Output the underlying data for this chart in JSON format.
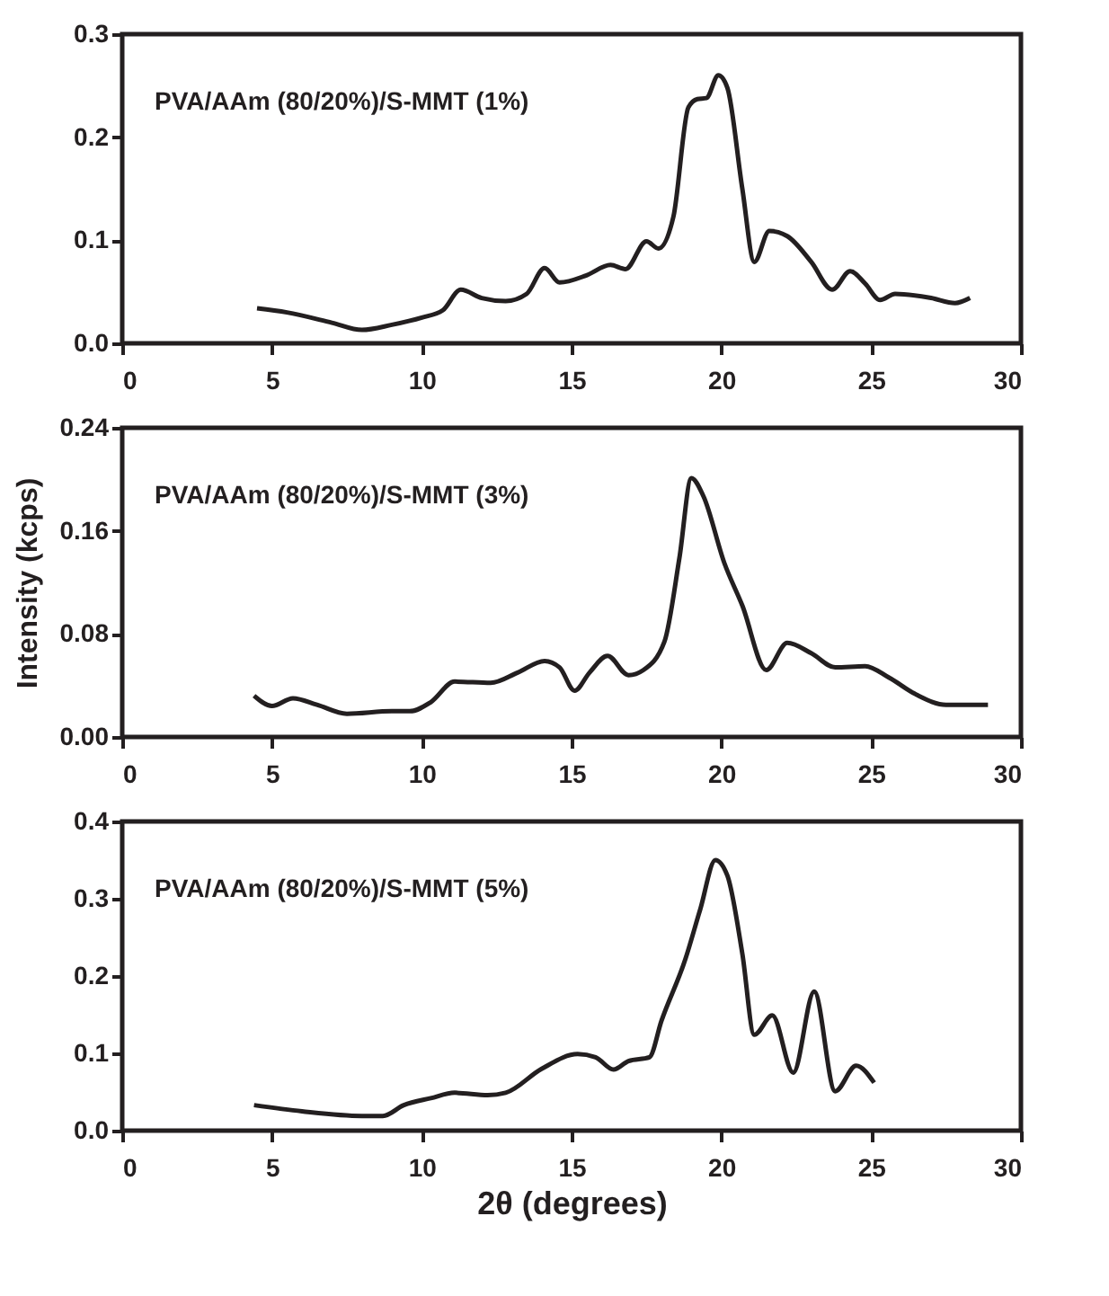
{
  "chart_data": [
    {
      "type": "line",
      "annotations": [
        "PVA/AAm (80/20%)/S-MMT (1%)"
      ],
      "xlim": [
        0,
        30
      ],
      "xticks": [
        0,
        5,
        10,
        15,
        20,
        25,
        30
      ],
      "ylim": [
        0,
        0.3
      ],
      "yticks": [
        {
          "value": 0,
          "label": "0.0"
        },
        {
          "value": 0.1,
          "label": "0.1"
        },
        {
          "value": 0.2,
          "label": "0.2"
        },
        {
          "value": 0.3,
          "label": "0.3"
        }
      ],
      "grid": false,
      "marker": "none",
      "line_style": "solid",
      "series": [
        {
          "color": "#231f20",
          "x": [
            4.5,
            5.5,
            7,
            8,
            9,
            10,
            10.7,
            11.3,
            12,
            12.8,
            13.5,
            14.1,
            14.6,
            15.5,
            16.3,
            16.8,
            17.5,
            17.9,
            18.4,
            18.9,
            19.2,
            19.5,
            19.9,
            20.2,
            20.7,
            21.1,
            21.6,
            22.2,
            23,
            23.7,
            24.3,
            24.8,
            25.3,
            25.8,
            27,
            27.8,
            28.3
          ],
          "values": [
            0.034,
            0.03,
            0.02,
            0.013,
            0.018,
            0.025,
            0.032,
            0.052,
            0.044,
            0.041,
            0.048,
            0.073,
            0.059,
            0.066,
            0.076,
            0.072,
            0.099,
            0.092,
            0.123,
            0.229,
            0.237,
            0.238,
            0.26,
            0.248,
            0.15,
            0.079,
            0.109,
            0.104,
            0.079,
            0.052,
            0.07,
            0.058,
            0.042,
            0.048,
            0.044,
            0.039,
            0.044
          ]
        }
      ]
    },
    {
      "type": "line",
      "ylabel": "Intensity (kcps)",
      "annotations": [
        "PVA/AAm (80/20%)/S-MMT (3%)"
      ],
      "xlim": [
        0,
        30
      ],
      "xticks": [
        0,
        5,
        10,
        15,
        20,
        25,
        30
      ],
      "ylim": [
        0,
        0.24
      ],
      "yticks": [
        {
          "value": 0,
          "label": "0.00"
        },
        {
          "value": 0.08,
          "label": "0.08"
        },
        {
          "value": 0.16,
          "label": "0.16"
        },
        {
          "value": 0.24,
          "label": "0.24"
        }
      ],
      "grid": false,
      "marker": "none",
      "line_style": "solid",
      "series": [
        {
          "color": "#231f20",
          "x": [
            4.4,
            5,
            5.7,
            6.5,
            7.5,
            9,
            9.6,
            10.3,
            11.1,
            12.3,
            13.2,
            14.1,
            14.6,
            15.1,
            15.6,
            16.2,
            16.9,
            17.4,
            18.1,
            18.6,
            19,
            19.4,
            20.1,
            20.7,
            21.5,
            22.2,
            23,
            23.8,
            24.8,
            25.6,
            26.5,
            27.5,
            28.9
          ],
          "values": [
            0.032,
            0.024,
            0.03,
            0.025,
            0.018,
            0.02,
            0.02,
            0.027,
            0.043,
            0.042,
            0.05,
            0.059,
            0.054,
            0.036,
            0.05,
            0.063,
            0.048,
            0.052,
            0.074,
            0.139,
            0.201,
            0.187,
            0.135,
            0.102,
            0.052,
            0.073,
            0.065,
            0.054,
            0.055,
            0.046,
            0.033,
            0.025,
            0.025
          ]
        }
      ]
    },
    {
      "type": "line",
      "xlabel": "2θ (degrees)",
      "annotations": [
        "PVA/AAm (80/20%)/S-MMT (5%)"
      ],
      "xlim": [
        0,
        30
      ],
      "xticks": [
        0,
        5,
        10,
        15,
        20,
        25,
        30
      ],
      "ylim": [
        0,
        0.4
      ],
      "yticks": [
        {
          "value": 0,
          "label": "0.0"
        },
        {
          "value": 0.1,
          "label": "0.1"
        },
        {
          "value": 0.2,
          "label": "0.2"
        },
        {
          "value": 0.3,
          "label": "0.3"
        },
        {
          "value": 0.4,
          "label": "0.4"
        }
      ],
      "grid": false,
      "marker": "none",
      "line_style": "solid",
      "series": [
        {
          "color": "#231f20",
          "x": [
            4.4,
            6,
            8,
            8.7,
            9.4,
            10.3,
            11.1,
            12.2,
            12.8,
            14,
            15.2,
            15.8,
            16.4,
            16.9,
            17.6,
            18,
            18.8,
            19.3,
            19.8,
            20.2,
            20.7,
            21.1,
            21.7,
            22.4,
            23.1,
            23.8,
            24.5,
            25.1
          ],
          "values": [
            0.033,
            0.025,
            0.019,
            0.019,
            0.033,
            0.042,
            0.049,
            0.046,
            0.049,
            0.08,
            0.099,
            0.095,
            0.079,
            0.09,
            0.095,
            0.142,
            0.222,
            0.287,
            0.35,
            0.33,
            0.229,
            0.124,
            0.149,
            0.075,
            0.18,
            0.051,
            0.084,
            0.062
          ]
        }
      ]
    }
  ]
}
